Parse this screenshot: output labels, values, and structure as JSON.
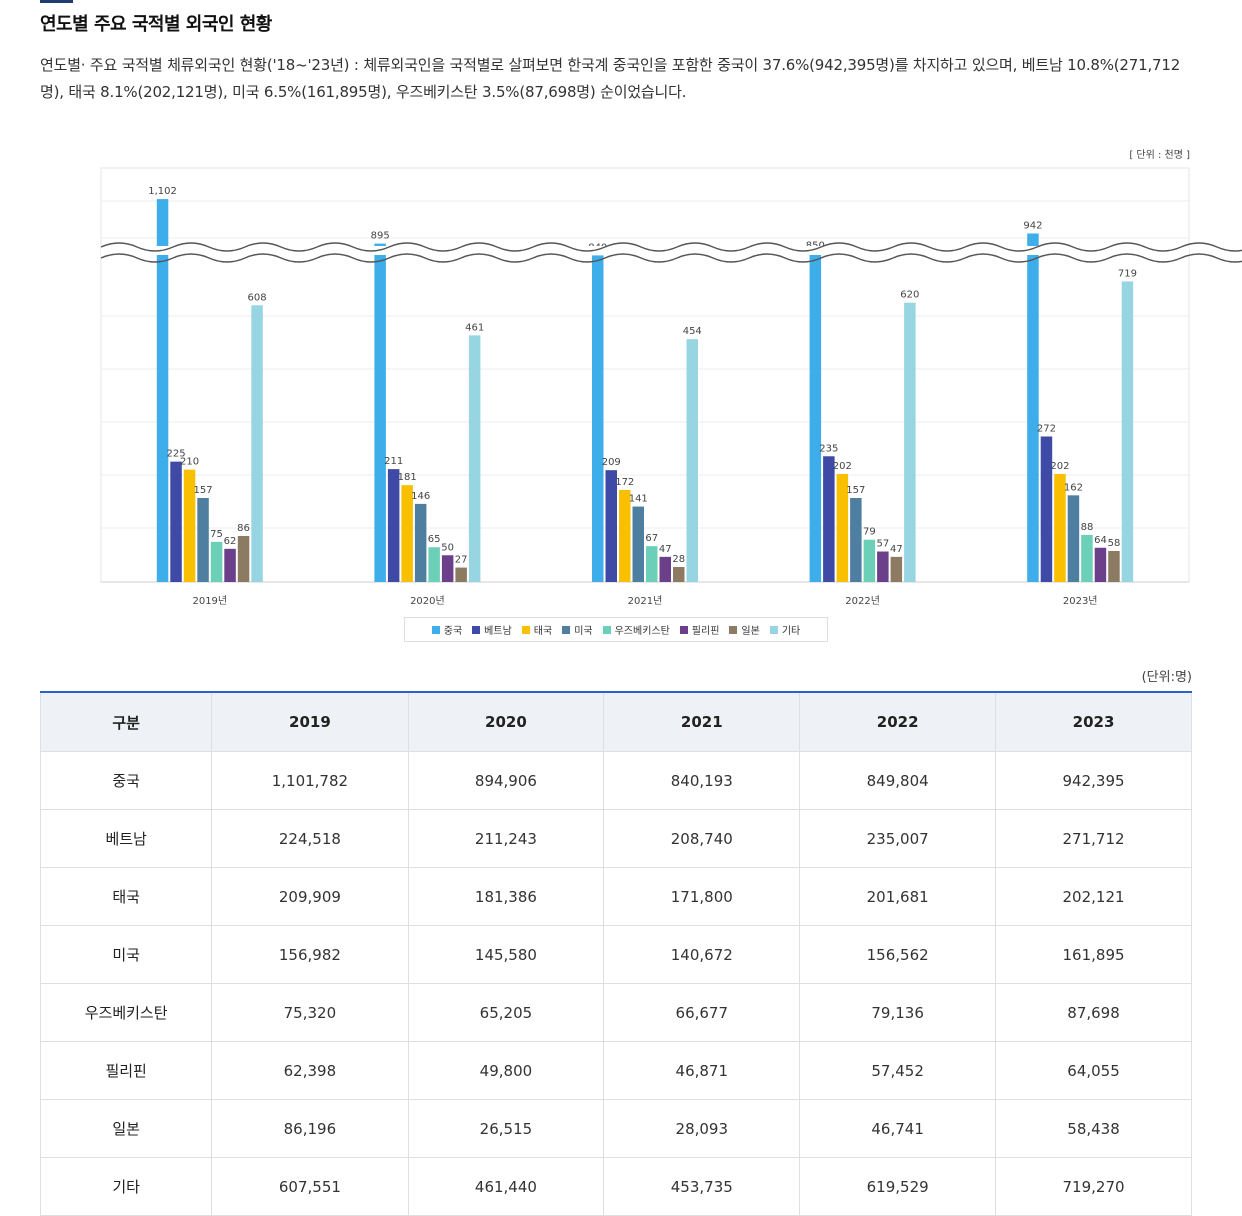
{
  "page": {
    "title": "연도별 주요 국적별 외국인 현황",
    "description": "연도별· 주요 국적별 체류외국인 현황('18~'23년) : 체류외국인을 국적별로 살펴보면 한국계 중국인을 포함한 중국이 37.6%(942,395명)를 차지하고 있으며, 베트남 10.8%(271,712명), 태국 8.1%(202,121명), 미국 6.5%(161,895명), 우즈베키스탄 3.5%(87,698명) 순이었습니다."
  },
  "chart_unit": "[ 단위 : 천명 ]",
  "chart_data": {
    "type": "bar",
    "categories": [
      "2019년",
      "2020년",
      "2021년",
      "2022년",
      "2023년"
    ],
    "series": [
      {
        "name": "중국",
        "color": "#3daee9",
        "values": [
          1102,
          895,
          840,
          850,
          942
        ]
      },
      {
        "name": "베트남",
        "color": "#3f4aa6",
        "values": [
          225,
          211,
          209,
          235,
          272
        ]
      },
      {
        "name": "태국",
        "color": "#f8c000",
        "values": [
          210,
          181,
          172,
          202,
          202
        ]
      },
      {
        "name": "미국",
        "color": "#4f7fa0",
        "values": [
          157,
          146,
          141,
          157,
          162
        ]
      },
      {
        "name": "우즈베키스탄",
        "color": "#6ccfb8",
        "values": [
          75,
          65,
          67,
          79,
          88
        ]
      },
      {
        "name": "필리핀",
        "color": "#6b3f8a",
        "values": [
          62,
          50,
          47,
          57,
          64
        ]
      },
      {
        "name": "일본",
        "color": "#8c7a63",
        "values": [
          86,
          27,
          28,
          47,
          58
        ]
      },
      {
        "name": "기타",
        "color": "#98d5e2",
        "values": [
          608,
          461,
          454,
          620,
          719
        ]
      }
    ],
    "y_axis_break": true,
    "grid": true,
    "legend_position": "bottom"
  },
  "table_unit": "(단위:명)",
  "table": {
    "header": [
      "구분",
      "2019",
      "2020",
      "2021",
      "2022",
      "2023"
    ],
    "rows": [
      {
        "label": "중국",
        "values": [
          "1,101,782",
          "894,906",
          "840,193",
          "849,804",
          "942,395"
        ]
      },
      {
        "label": "베트남",
        "values": [
          "224,518",
          "211,243",
          "208,740",
          "235,007",
          "271,712"
        ]
      },
      {
        "label": "태국",
        "values": [
          "209,909",
          "181,386",
          "171,800",
          "201,681",
          "202,121"
        ]
      },
      {
        "label": "미국",
        "values": [
          "156,982",
          "145,580",
          "140,672",
          "156,562",
          "161,895"
        ]
      },
      {
        "label": "우즈베키스탄",
        "values": [
          "75,320",
          "65,205",
          "66,677",
          "79,136",
          "87,698"
        ]
      },
      {
        "label": "필리핀",
        "values": [
          "62,398",
          "49,800",
          "46,871",
          "57,452",
          "64,055"
        ]
      },
      {
        "label": "일본",
        "values": [
          "86,196",
          "26,515",
          "28,093",
          "46,741",
          "58,438"
        ]
      },
      {
        "label": "기타",
        "values": [
          "607,551",
          "461,440",
          "453,735",
          "619,529",
          "719,270"
        ]
      }
    ]
  }
}
